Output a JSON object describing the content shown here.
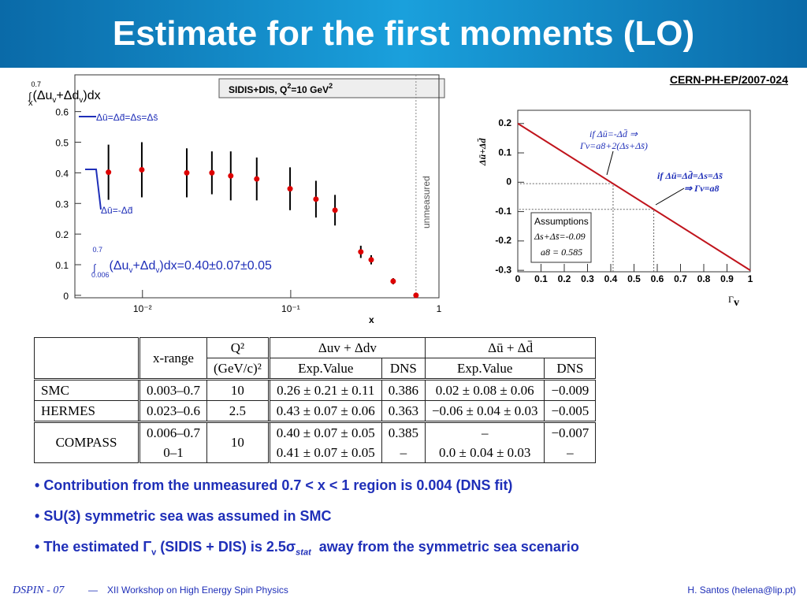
{
  "title": "Estimate for the first moments (LO)",
  "reference": "CERN-PH-EP/2007-024",
  "chart_data": [
    {
      "type": "scatter",
      "y_label": [
        "∫",
        "0.7",
        "x",
        "(Δu",
        "v",
        "+Δd",
        "v",
        ")dx"
      ],
      "legend_box": [
        "SIDIS+DIS, Q",
        "2",
        "=10 GeV",
        "2"
      ],
      "annotations": [
        "Δū=Δd̄=Δs=Δs̄",
        "Δū=-Δd̄",
        "unmeasured"
      ],
      "integral": [
        "∫",
        "0.7",
        "0.006",
        "(Δu",
        "v",
        "+Δd",
        "v",
        ")dx=0.40±0.07±0.05"
      ],
      "x_label": "x",
      "x": [
        0.0059,
        0.0099,
        0.0199,
        0.0294,
        0.0394,
        0.059,
        0.099,
        0.148,
        0.199,
        0.297,
        0.349,
        0.491,
        0.7
      ],
      "y": [
        0.402,
        0.41,
        0.4,
        0.4,
        0.39,
        0.38,
        0.348,
        0.314,
        0.278,
        0.142,
        0.116,
        0.046,
        0.0
      ],
      "errors": [
        0.09,
        0.09,
        0.08,
        0.07,
        0.08,
        0.07,
        0.07,
        0.06,
        0.05,
        0.02,
        0.015,
        0.01,
        0.005
      ],
      "color": "#dd0000",
      "xlog": true,
      "boundary_x": 0.7,
      "xlim": [
        0.0035,
        1
      ],
      "xticks": [
        {
          "value": 0.01,
          "label": "10⁻²"
        },
        {
          "value": 0.1,
          "label": "10⁻¹"
        },
        1
      ],
      "ylim": [
        -0.008,
        0.72
      ],
      "yticks": [
        0,
        0.1,
        0.2,
        0.3,
        0.4,
        0.5,
        0.6
      ]
    },
    {
      "type": "line",
      "y_label": "Δū+Δd̄",
      "x_label": [
        "Γ",
        "v"
      ],
      "annotations": [
        [
          "if  Δū=-Δd̄ ⇒",
          "Γv=a8+2(Δs+Δs̄)"
        ],
        [
          "if  Δū=Δd̄=Δs=Δs̄",
          "⇒ Γv=a8"
        ]
      ],
      "assumptions": [
        "Assumptions",
        "Δs+Δs̄=-0.09",
        "a8 = 0.585"
      ],
      "x": [
        0,
        1
      ],
      "y": [
        0.2,
        -0.3
      ],
      "color": "#c0141c",
      "guide_x": [
        0.41,
        0.585
      ],
      "guide_y": [
        -0.005,
        -0.0925
      ],
      "xlim": [
        0,
        1
      ],
      "xticks": [
        0,
        0.1,
        0.2,
        0.3,
        0.4,
        0.5,
        0.6,
        0.7,
        0.8,
        0.9,
        1
      ],
      "ylim": [
        -0.305,
        0.245
      ],
      "yticks": [
        -0.3,
        -0.2,
        -0.1,
        0,
        0.1,
        0.2
      ]
    }
  ],
  "table": {
    "header": [
      [
        "x-range",
        "Q²",
        "Δuv + Δdv",
        "Δū + Δd̄"
      ],
      [
        "(GeV/c)²",
        "Exp.Value",
        "DNS",
        "Exp.Value",
        "DNS"
      ]
    ],
    "rows": [
      [
        "SMC",
        "0.003–0.7",
        "10",
        "0.26 ± 0.21 ± 0.11",
        "0.386",
        "0.02 ± 0.08 ± 0.06",
        "−0.009"
      ],
      [
        "HERMES",
        "0.023–0.6",
        "2.5",
        "0.43 ± 0.07 ± 0.06",
        "0.363",
        "−0.06 ± 0.04 ± 0.03",
        "−0.005"
      ],
      [
        "COMPASS",
        "0.006–0.7",
        "10",
        "0.40 ± 0.07 ± 0.05",
        "0.385",
        "–",
        "−0.007"
      ],
      [
        "0–1",
        "0.41 ± 0.07 ± 0.05",
        "–",
        "0.0 ± 0.04 ± 0.03",
        "–"
      ]
    ]
  },
  "bullets": [
    [
      "Contribution from the unmeasured 0.7 < x < 1 region is 0.004 (DNS fit)"
    ],
    [
      "SU(3) symmetric sea was assumed in SMC"
    ],
    [
      "The estimated Γ",
      "v",
      " (SIDIS + DIS) is 2.5σ",
      "stat",
      "  away from the symmetric sea scenario"
    ]
  ],
  "footer": {
    "conf": "DSPIN - 07",
    "dash": "—",
    "workshop": "XII Workshop on High Energy Spin Physics",
    "author": "H. Santos  (helena@lip.pt)"
  }
}
